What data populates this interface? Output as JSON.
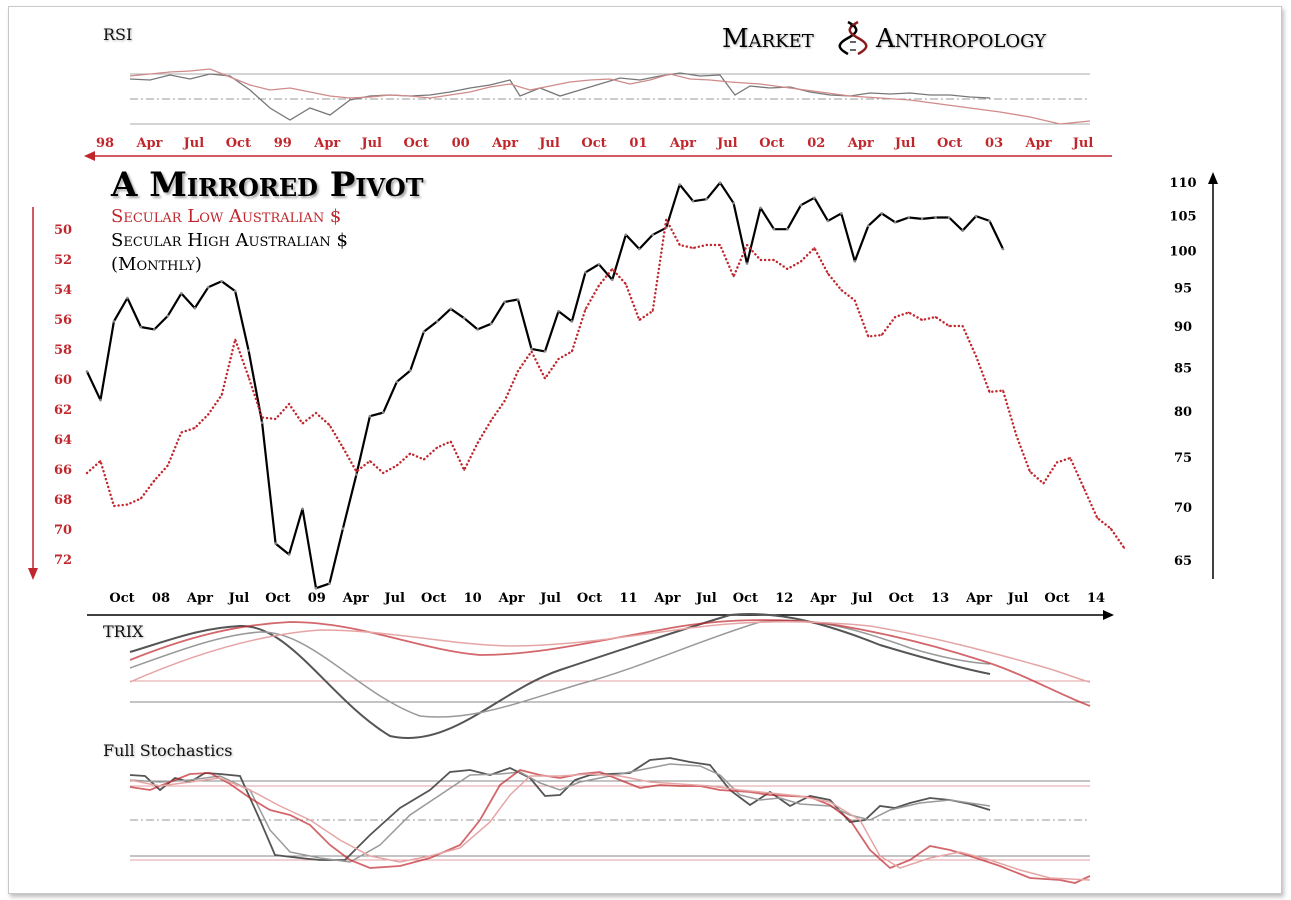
{
  "brand": {
    "left": "Market",
    "right": "Anthropology"
  },
  "chart_data": {
    "type": "line",
    "title": "A Mirrored Pivot",
    "subtitle_red": "Secular Low  Australian $",
    "subtitle_black": "Secular High  Australian $",
    "subtitle_freq": "(Monthly)",
    "colors": {
      "red": "#c0272d",
      "black": "#000000"
    },
    "top_axis": {
      "labels": [
        "98",
        "Apr",
        "Jul",
        "Oct",
        "99",
        "Apr",
        "Jul",
        "Oct",
        "00",
        "Apr",
        "Jul",
        "Oct",
        "01",
        "Apr",
        "Jul",
        "Oct",
        "02",
        "Apr",
        "Jul",
        "Oct",
        "03",
        "Apr",
        "Jul"
      ]
    },
    "bottom_axis": {
      "labels": [
        "Oct",
        "08",
        "Apr",
        "Jul",
        "Oct",
        "09",
        "Apr",
        "Jul",
        "Oct",
        "10",
        "Apr",
        "Jul",
        "Oct",
        "11",
        "Apr",
        "Jul",
        "Oct",
        "12",
        "Apr",
        "Jul",
        "Oct",
        "13",
        "Apr",
        "Jul",
        "Oct",
        "14"
      ]
    },
    "left_axis": {
      "ticks": [
        50,
        52,
        54,
        56,
        58,
        60,
        62,
        64,
        66,
        68,
        70,
        72
      ],
      "inverted": true,
      "series": "Secular Low Australian $"
    },
    "right_axis": {
      "ticks": [
        110,
        105,
        100,
        95,
        90,
        85,
        80,
        75,
        70,
        65
      ],
      "scale": "log",
      "series": "Secular High Australian $"
    },
    "series": [
      {
        "name": "Secular High  Australian $",
        "style": "solid",
        "color": "#000000",
        "axis": "right",
        "values": [
          84.5,
          81.2,
          90.6,
          93.6,
          89.9,
          89.6,
          91.3,
          94.2,
          92.3,
          95.0,
          95.8,
          94.5,
          87.0,
          78.7,
          66.5,
          65.5,
          69.8,
          62.5,
          62.9,
          67.9,
          73.2,
          79.4,
          79.8,
          83.3,
          84.6,
          89.3,
          90.6,
          92.2,
          91.0,
          89.6,
          90.3,
          93.1,
          93.4,
          87.2,
          86.9,
          91.9,
          90.6,
          97.0,
          98.1,
          96.0,
          102.2,
          100.2,
          102.2,
          103.2,
          109.6,
          107.1,
          107.4,
          109.9,
          106.8,
          98.2,
          106.1,
          103.0,
          103.0,
          106.5,
          107.6,
          104.2,
          105.3,
          98.5,
          103.5,
          105.3,
          104.0,
          104.7,
          104.5,
          104.7,
          104.7,
          102.8,
          104.9,
          104.2,
          100.2
        ]
      },
      {
        "name": "Secular Low  Australian $",
        "style": "dotted",
        "color": "#c0272d",
        "axis": "left",
        "values": [
          66.2,
          65.4,
          68.4,
          68.3,
          67.9,
          66.7,
          65.7,
          63.5,
          63.2,
          62.3,
          61.0,
          57.3,
          59.8,
          62.5,
          62.6,
          61.6,
          62.9,
          62.2,
          63.0,
          64.5,
          66.1,
          65.4,
          66.2,
          65.7,
          64.9,
          65.3,
          64.5,
          64.1,
          66.0,
          64.2,
          62.7,
          61.4,
          59.4,
          58.1,
          59.9,
          58.6,
          58.1,
          55.3,
          53.7,
          52.6,
          53.6,
          56.0,
          55.4,
          49.3,
          51.0,
          51.2,
          51.0,
          51.0,
          53.1,
          51.0,
          52.0,
          52.0,
          52.6,
          52.1,
          51.2,
          52.9,
          54.0,
          54.7,
          57.1,
          57.0,
          55.8,
          55.5,
          56.0,
          55.8,
          56.4,
          56.4,
          58.4,
          60.8,
          60.7,
          63.7,
          66.1,
          66.9,
          65.5,
          65.2,
          67.2,
          69.2,
          69.9,
          71.2
        ]
      }
    ]
  },
  "indicators": {
    "rsi": "RSI",
    "trix": "TRIX",
    "stochastics": "Full Stochastics"
  }
}
